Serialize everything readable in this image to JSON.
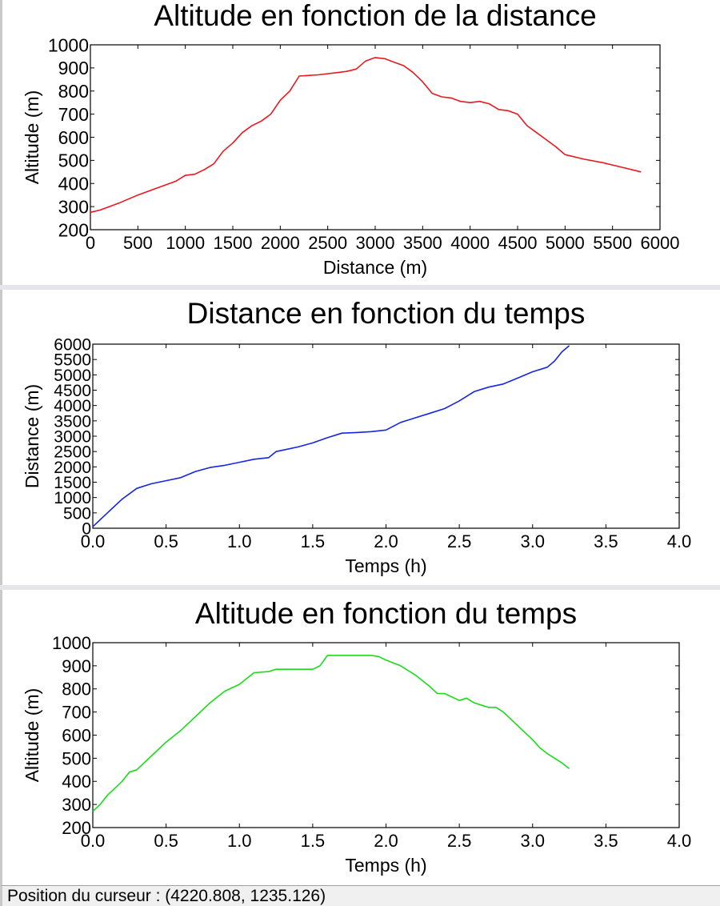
{
  "charts": [
    {
      "type": "line",
      "title": "Altitude en fonction de la distance",
      "xlabel": "Distance (m)",
      "ylabel": "Altitude (m)",
      "xlim": [
        0,
        6000
      ],
      "ylim": [
        200,
        1000
      ],
      "xticks": [
        0,
        500,
        1000,
        1500,
        2000,
        2500,
        3000,
        3500,
        4000,
        4500,
        5000,
        5500,
        6000
      ],
      "xtick_labels": [
        "0",
        "500",
        "1000",
        "1500",
        "2000",
        "2500",
        "3000",
        "3500",
        "4000",
        "4500",
        "5000",
        "5500",
        "6000"
      ],
      "yticks": [
        200,
        300,
        400,
        500,
        600,
        700,
        800,
        900,
        1000
      ],
      "ytick_labels": [
        "200",
        "300",
        "400",
        "500",
        "600",
        "700",
        "800",
        "900",
        "1000"
      ],
      "color": "#e8181e",
      "grid": false,
      "x": [
        0,
        100,
        300,
        500,
        700,
        800,
        900,
        1000,
        1100,
        1200,
        1300,
        1400,
        1500,
        1600,
        1700,
        1800,
        1900,
        2000,
        2100,
        2200,
        2400,
        2600,
        2700,
        2800,
        2900,
        3000,
        3100,
        3200,
        3300,
        3400,
        3500,
        3600,
        3700,
        3800,
        3900,
        4000,
        4100,
        4200,
        4300,
        4400,
        4500,
        4600,
        4700,
        4800,
        4900,
        5000,
        5200,
        5400,
        5600,
        5800
      ],
      "y": [
        275,
        285,
        315,
        350,
        380,
        395,
        410,
        435,
        440,
        460,
        485,
        540,
        575,
        620,
        650,
        670,
        700,
        760,
        800,
        865,
        870,
        880,
        885,
        895,
        930,
        945,
        940,
        925,
        910,
        880,
        840,
        790,
        775,
        770,
        755,
        750,
        755,
        745,
        720,
        715,
        700,
        650,
        620,
        590,
        560,
        525,
        505,
        490,
        470,
        450
      ]
    },
    {
      "type": "line",
      "title": "Distance en fonction du temps",
      "xlabel": "Temps (h)",
      "ylabel": "Distance (m)",
      "xlim": [
        0,
        4
      ],
      "ylim": [
        0,
        6000
      ],
      "xticks": [
        0,
        0.5,
        1,
        1.5,
        2,
        2.5,
        3,
        3.5,
        4
      ],
      "xtick_labels": [
        "0.0",
        "0.5",
        "1.0",
        "1.5",
        "2.0",
        "2.5",
        "3.0",
        "3.5",
        "4.0"
      ],
      "yticks": [
        0,
        500,
        1000,
        1500,
        2000,
        2500,
        3000,
        3500,
        4000,
        4500,
        5000,
        5500,
        6000
      ],
      "ytick_labels": [
        "0",
        "500",
        "1000",
        "1500",
        "2000",
        "2500",
        "3000",
        "3500",
        "4000",
        "4500",
        "5000",
        "5500",
        "6000"
      ],
      "color": "#1426e0",
      "grid": false,
      "x": [
        0,
        0.1,
        0.2,
        0.3,
        0.4,
        0.5,
        0.6,
        0.7,
        0.8,
        0.9,
        1.0,
        1.1,
        1.2,
        1.25,
        1.3,
        1.4,
        1.5,
        1.6,
        1.7,
        1.8,
        1.9,
        2.0,
        2.1,
        2.2,
        2.3,
        2.4,
        2.5,
        2.6,
        2.7,
        2.8,
        2.9,
        3.0,
        3.1,
        3.15,
        3.2,
        3.25
      ],
      "y": [
        50,
        500,
        950,
        1300,
        1450,
        1550,
        1650,
        1850,
        1980,
        2050,
        2150,
        2250,
        2300,
        2500,
        2550,
        2650,
        2780,
        2950,
        3100,
        3120,
        3150,
        3200,
        3450,
        3600,
        3750,
        3900,
        4150,
        4450,
        4600,
        4700,
        4900,
        5100,
        5250,
        5450,
        5750,
        5950
      ]
    },
    {
      "type": "line",
      "title": "Altitude en fonction du temps",
      "xlabel": "Temps (h)",
      "ylabel": "Altitude (m)",
      "xlim": [
        0,
        4
      ],
      "ylim": [
        200,
        1000
      ],
      "xticks": [
        0,
        0.5,
        1,
        1.5,
        2,
        2.5,
        3,
        3.5,
        4
      ],
      "xtick_labels": [
        "0.0",
        "0.5",
        "1.0",
        "1.5",
        "2.0",
        "2.5",
        "3.0",
        "3.5",
        "4.0"
      ],
      "yticks": [
        200,
        300,
        400,
        500,
        600,
        700,
        800,
        900,
        1000
      ],
      "ytick_labels": [
        "200",
        "300",
        "400",
        "500",
        "600",
        "700",
        "800",
        "900",
        "1000"
      ],
      "color": "#19dc19",
      "grid": false,
      "x": [
        0,
        0.05,
        0.1,
        0.2,
        0.25,
        0.3,
        0.4,
        0.5,
        0.6,
        0.7,
        0.8,
        0.9,
        1.0,
        1.1,
        1.2,
        1.25,
        1.3,
        1.4,
        1.5,
        1.55,
        1.6,
        1.7,
        1.8,
        1.9,
        1.95,
        2.0,
        2.1,
        2.2,
        2.3,
        2.35,
        2.4,
        2.5,
        2.55,
        2.6,
        2.7,
        2.75,
        2.8,
        2.9,
        3.0,
        3.05,
        3.1,
        3.2,
        3.25
      ],
      "y": [
        270,
        300,
        340,
        400,
        440,
        450,
        510,
        570,
        620,
        680,
        740,
        790,
        820,
        870,
        875,
        885,
        885,
        885,
        885,
        900,
        945,
        945,
        945,
        945,
        940,
        925,
        900,
        860,
        810,
        780,
        780,
        750,
        760,
        740,
        720,
        720,
        700,
        640,
        580,
        545,
        520,
        480,
        455
      ]
    }
  ],
  "status": {
    "text": "Position du curseur : (4220.808, 1235.126)"
  }
}
